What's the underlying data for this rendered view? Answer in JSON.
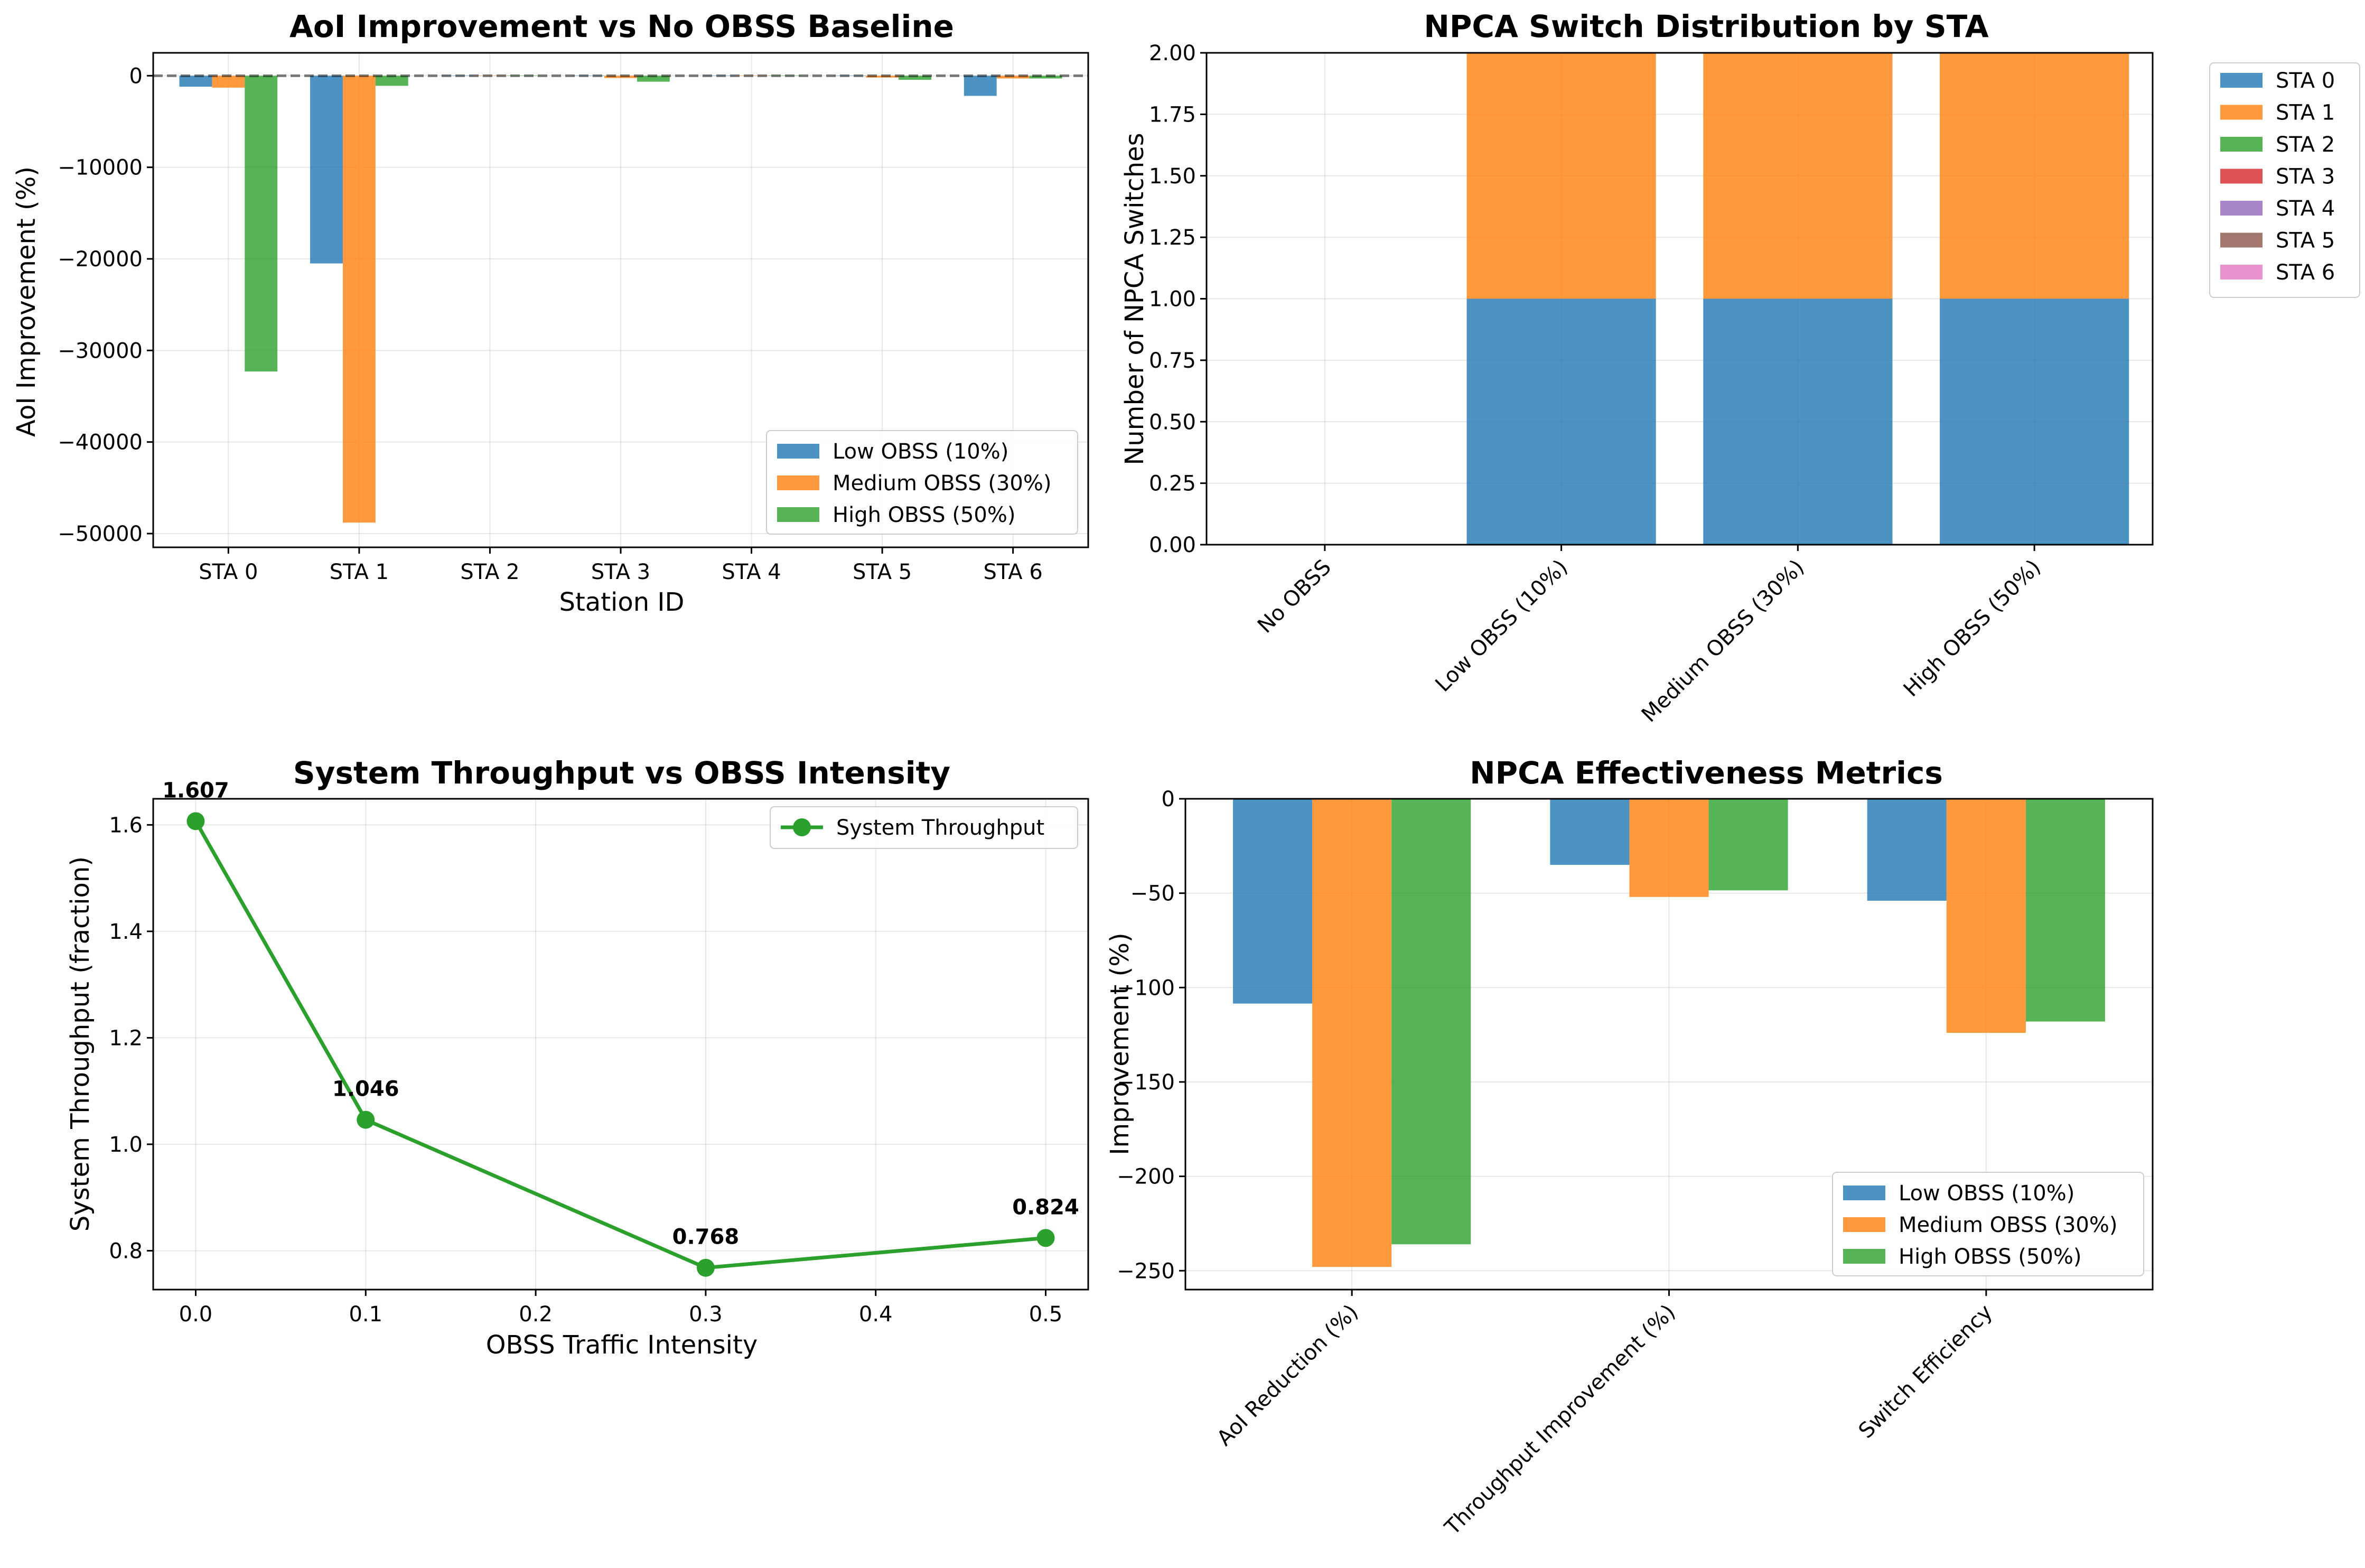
{
  "colors": {
    "blue": "#1f77b4",
    "orange": "#ff7f0e",
    "green": "#2ca02c",
    "red": "#d62728",
    "purple": "#9467bd",
    "brown": "#8c564b",
    "pink": "#e377c2"
  },
  "chart_data": [
    {
      "type": "bar",
      "title": "AoI Improvement vs No OBSS Baseline",
      "xlabel": "Station ID",
      "ylabel": "AoI Improvement (%)",
      "categories": [
        "STA 0",
        "STA 1",
        "STA 2",
        "STA 3",
        "STA 4",
        "STA 5",
        "STA 6"
      ],
      "series": [
        {
          "name": "Low OBSS (10%)",
          "values": [
            -1200,
            -20500,
            0,
            0,
            0,
            0,
            -2200
          ]
        },
        {
          "name": "Medium OBSS (30%)",
          "values": [
            -1300,
            -48800,
            0,
            -250,
            0,
            -200,
            -300
          ]
        },
        {
          "name": "High OBSS (50%)",
          "values": [
            -32300,
            -1100,
            0,
            -650,
            0,
            -450,
            -300
          ]
        }
      ],
      "ylim": [
        -51500,
        2500
      ],
      "yticks": [
        0,
        -10000,
        -20000,
        -30000,
        -40000,
        -50000
      ],
      "ytick_labels": [
        "0",
        "−10000",
        "−20000",
        "−30000",
        "−40000",
        "−50000"
      ],
      "baseline": 0,
      "legend": "lower right",
      "grid": true
    },
    {
      "type": "bar",
      "stacked": true,
      "title": "NPCA Switch Distribution by STA",
      "ylabel": "Number of NPCA Switches",
      "categories": [
        "No OBSS",
        "Low OBSS (10%)",
        "Medium OBSS (30%)",
        "High OBSS (50%)"
      ],
      "series": [
        {
          "name": "STA 0",
          "values": [
            0,
            1,
            1,
            1
          ]
        },
        {
          "name": "STA 1",
          "values": [
            0,
            1,
            1,
            1
          ]
        },
        {
          "name": "STA 2",
          "values": [
            0,
            0,
            0,
            0
          ]
        },
        {
          "name": "STA 3",
          "values": [
            0,
            0,
            0,
            0
          ]
        },
        {
          "name": "STA 4",
          "values": [
            0,
            0,
            0,
            0
          ]
        },
        {
          "name": "STA 5",
          "values": [
            0,
            0,
            0,
            0
          ]
        },
        {
          "name": "STA 6",
          "values": [
            0,
            0,
            0,
            0
          ]
        }
      ],
      "ylim": [
        0,
        2
      ],
      "yticks": [
        0,
        0.25,
        0.5,
        0.75,
        1.0,
        1.25,
        1.5,
        1.75,
        2.0
      ],
      "ytick_labels": [
        "0.00",
        "0.25",
        "0.50",
        "0.75",
        "1.00",
        "1.25",
        "1.50",
        "1.75",
        "2.00"
      ],
      "legend": "outside upper right",
      "grid": true
    },
    {
      "type": "line",
      "title": "System Throughput vs OBSS Intensity",
      "xlabel": "OBSS Traffic Intensity",
      "ylabel": "System Throughput (fraction)",
      "series": [
        {
          "name": "System Throughput",
          "x": [
            0.0,
            0.1,
            0.3,
            0.5
          ],
          "y": [
            1.607,
            1.046,
            0.768,
            0.824
          ]
        }
      ],
      "data_labels": [
        "1.607",
        "1.046",
        "0.768",
        "0.824"
      ],
      "xlim": [
        -0.025,
        0.525
      ],
      "ylim": [
        0.727,
        1.649
      ],
      "xticks": [
        0.0,
        0.1,
        0.2,
        0.3,
        0.4,
        0.5
      ],
      "xtick_labels": [
        "0.0",
        "0.1",
        "0.2",
        "0.3",
        "0.4",
        "0.5"
      ],
      "yticks": [
        0.8,
        1.0,
        1.2,
        1.4,
        1.6
      ],
      "ytick_labels": [
        "0.8",
        "1.0",
        "1.2",
        "1.4",
        "1.6"
      ],
      "legend": "upper right",
      "grid": true
    },
    {
      "type": "bar",
      "title": "NPCA Effectiveness Metrics",
      "ylabel": "Improvement (%)",
      "categories": [
        "AoI Reduction (%)",
        "Throughput Improvement (%)",
        "Switch Efficiency"
      ],
      "series": [
        {
          "name": "Low OBSS (10%)",
          "values": [
            -108.5,
            -35,
            -54
          ]
        },
        {
          "name": "Medium OBSS (30%)",
          "values": [
            -248,
            -52,
            -124
          ]
        },
        {
          "name": "High OBSS (50%)",
          "values": [
            -236,
            -48.5,
            -118
          ]
        }
      ],
      "ylim": [
        -260,
        0
      ],
      "yticks": [
        0,
        -50,
        -100,
        -150,
        -200,
        -250
      ],
      "ytick_labels": [
        "0",
        "−50",
        "−100",
        "−150",
        "−200",
        "−250"
      ],
      "legend": "lower right",
      "grid": true
    }
  ]
}
